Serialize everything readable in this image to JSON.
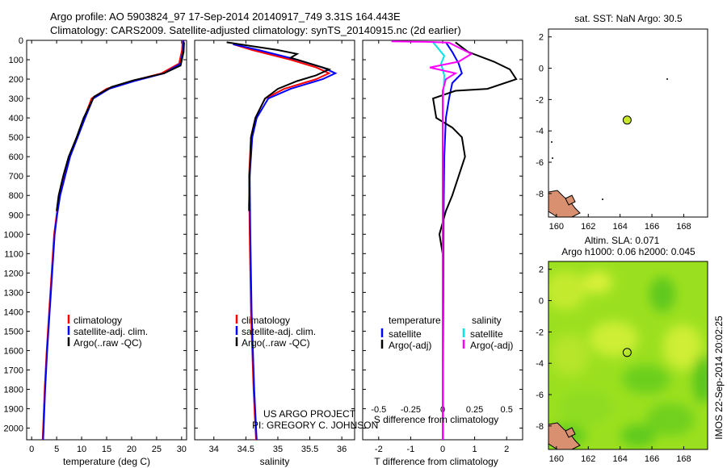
{
  "header": {
    "line1": "Argo profile: AO 5903824_97 17-Sep-2014 20140917_749 3.31S 164.443E",
    "line2": "Climatology: CARS2009. Satellite-adjusted climatology: synTS_20140915.nc (2d earlier)"
  },
  "credit": {
    "line1": "US ARGO PROJECT",
    "line2": "PI: GREGORY C. JOHNSON"
  },
  "timestamp": "IMOS 22-Sep-2014 20:02:25",
  "colors": {
    "climatology": "#ff0000",
    "satellite": "#0000ff",
    "argo": "#000000",
    "sal_satellite": "#00e5e5",
    "sal_argo": "#ff00ff",
    "sla_field": "#9be020",
    "land": "#d89070",
    "marker": "#c8e62a"
  },
  "chart_data": [
    {
      "id": "temperature",
      "type": "line",
      "xlabel": "temperature (deg C)",
      "ylabel": "",
      "xlim": [
        -1,
        31
      ],
      "ylim": [
        2060,
        0
      ],
      "xticks": [
        0,
        5,
        10,
        15,
        20,
        25,
        30
      ],
      "yticks": [
        0,
        100,
        200,
        300,
        400,
        500,
        600,
        700,
        800,
        900,
        1000,
        1100,
        1200,
        1300,
        1400,
        1500,
        1600,
        1700,
        1800,
        1900,
        2000
      ],
      "legend": [
        "climatology",
        "satellite-adj. clim.",
        "Argo(..raw -QC)"
      ],
      "legend_placement": "lower-center",
      "series": [
        {
          "name": "climatology",
          "color": "#ff0000",
          "points": [
            [
              30.2,
              0
            ],
            [
              30.1,
              50
            ],
            [
              29.5,
              120
            ],
            [
              26,
              170
            ],
            [
              20,
              210
            ],
            [
              15,
              250
            ],
            [
              12,
              300
            ],
            [
              10.5,
              400
            ],
            [
              9,
              500
            ],
            [
              7.5,
              600
            ],
            [
              6.5,
              700
            ],
            [
              5.5,
              800
            ],
            [
              5,
              900
            ],
            [
              4.5,
              1000
            ],
            [
              4,
              1200
            ],
            [
              3.5,
              1400
            ],
            [
              3,
              1600
            ],
            [
              2.6,
              1800
            ],
            [
              2.3,
              2000
            ],
            [
              2.2,
              2060
            ]
          ]
        },
        {
          "name": "satellite-adj. clim.",
          "color": "#0000ff",
          "points": [
            [
              30.4,
              0
            ],
            [
              30.3,
              50
            ],
            [
              29.8,
              120
            ],
            [
              26.5,
              170
            ],
            [
              20.5,
              210
            ],
            [
              15.5,
              250
            ],
            [
              12.3,
              300
            ],
            [
              10.7,
              400
            ],
            [
              9.2,
              500
            ],
            [
              7.7,
              600
            ],
            [
              6.7,
              700
            ],
            [
              5.7,
              800
            ],
            [
              5.1,
              900
            ],
            [
              4.6,
              1000
            ],
            [
              4.1,
              1200
            ],
            [
              3.6,
              1400
            ],
            [
              3.1,
              1600
            ],
            [
              2.7,
              1800
            ],
            [
              2.4,
              2000
            ],
            [
              2.3,
              2060
            ]
          ]
        },
        {
          "name": "Argo(..raw -QC)",
          "color": "#000000",
          "points": [
            [
              30.5,
              10
            ],
            [
              30.4,
              60
            ],
            [
              29.8,
              130
            ],
            [
              26.5,
              170
            ],
            [
              20.5,
              205
            ],
            [
              16,
              240
            ],
            [
              12.5,
              290
            ],
            [
              10.4,
              400
            ],
            [
              9,
              500
            ],
            [
              7.4,
              600
            ],
            [
              6.3,
              700
            ],
            [
              5.4,
              800
            ],
            [
              5,
              880
            ]
          ]
        }
      ]
    },
    {
      "id": "salinity",
      "type": "line",
      "xlabel": "salinity",
      "xlim": [
        33.7,
        36.2
      ],
      "ylim": [
        2060,
        0
      ],
      "xticks": [
        34,
        34.5,
        35,
        35.5,
        36
      ],
      "legend": [
        "climatology",
        "satellite-adj. clim.",
        "Argo(..raw -QC)"
      ],
      "legend_placement": "lower-center",
      "series": [
        {
          "name": "climatology",
          "color": "#ff0000",
          "points": [
            [
              34.3,
              20
            ],
            [
              34.6,
              50
            ],
            [
              35.2,
              100
            ],
            [
              35.6,
              140
            ],
            [
              35.8,
              170
            ],
            [
              35.6,
              200
            ],
            [
              35.1,
              250
            ],
            [
              34.8,
              300
            ],
            [
              34.65,
              400
            ],
            [
              34.58,
              500
            ],
            [
              34.55,
              700
            ],
            [
              34.56,
              1000
            ],
            [
              34.58,
              1400
            ],
            [
              34.62,
              1800
            ],
            [
              34.65,
              2000
            ],
            [
              34.66,
              2060
            ]
          ]
        },
        {
          "name": "satellite-adj. clim.",
          "color": "#0000ff",
          "points": [
            [
              34.3,
              20
            ],
            [
              34.7,
              50
            ],
            [
              35.3,
              100
            ],
            [
              35.7,
              140
            ],
            [
              35.9,
              170
            ],
            [
              35.7,
              200
            ],
            [
              35.2,
              250
            ],
            [
              34.85,
              300
            ],
            [
              34.67,
              400
            ],
            [
              34.6,
              500
            ],
            [
              34.56,
              700
            ],
            [
              34.57,
              1000
            ],
            [
              34.59,
              1400
            ],
            [
              34.63,
              1800
            ],
            [
              34.66,
              2000
            ],
            [
              34.67,
              2060
            ]
          ]
        },
        {
          "name": "Argo(..raw -QC)",
          "color": "#000000",
          "points": [
            [
              34.2,
              10
            ],
            [
              34.6,
              30
            ],
            [
              35.0,
              50
            ],
            [
              35.3,
              70
            ],
            [
              35.2,
              90
            ],
            [
              35.5,
              120
            ],
            [
              35.8,
              150
            ],
            [
              35.6,
              180
            ],
            [
              35.3,
              210
            ],
            [
              35.0,
              250
            ],
            [
              34.8,
              300
            ],
            [
              34.65,
              400
            ],
            [
              34.58,
              500
            ],
            [
              34.56,
              700
            ],
            [
              34.55,
              850
            ],
            [
              34.55,
              880
            ]
          ]
        }
      ]
    },
    {
      "id": "difference",
      "type": "line",
      "xlabel": "T difference from climatology",
      "x2label": "S difference from climatology",
      "xlim": [
        -2.5,
        2.5
      ],
      "ylim": [
        2060,
        0
      ],
      "xticks": [
        -2,
        -1,
        0,
        1,
        2
      ],
      "x2ticks": [
        -0.5,
        -0.25,
        0,
        0.25,
        0.5
      ],
      "legend_groups": [
        {
          "title": "temperature",
          "items": [
            "satellite",
            "Argo(-adj)"
          ]
        },
        {
          "title": "salinity",
          "items": [
            "satellite",
            "Argo(-adj)"
          ]
        }
      ],
      "series": [
        {
          "name": "temperature satellite",
          "color": "#0000ff",
          "points": [
            [
              0.1,
              10
            ],
            [
              0.3,
              60
            ],
            [
              0.5,
              120
            ],
            [
              0.6,
              170
            ],
            [
              0.3,
              220
            ],
            [
              0.2,
              300
            ],
            [
              0.1,
              400
            ],
            [
              0.05,
              600
            ],
            [
              0.03,
              900
            ],
            [
              0.02,
              1300
            ],
            [
              0.01,
              1700
            ],
            [
              0.01,
              2060
            ]
          ]
        },
        {
          "name": "temperature Argo(-adj)",
          "color": "#000000",
          "points": [
            [
              0.4,
              10
            ],
            [
              0.8,
              60
            ],
            [
              1.6,
              110
            ],
            [
              2.1,
              150
            ],
            [
              2.3,
              200
            ],
            [
              1.4,
              250
            ],
            [
              0.4,
              260
            ],
            [
              -0.3,
              300
            ],
            [
              -0.2,
              400
            ],
            [
              0.3,
              450
            ],
            [
              0.6,
              500
            ],
            [
              0.7,
              600
            ],
            [
              0.5,
              700
            ],
            [
              0.3,
              800
            ],
            [
              0.1,
              880
            ],
            [
              -0.1,
              1000
            ],
            [
              0,
              1100
            ],
            [
              0,
              1800
            ]
          ]
        },
        {
          "name": "salinity satellite",
          "color": "#00e5e5",
          "points": [
            [
              -0.3,
              10
            ],
            [
              -0.15,
              40
            ],
            [
              0.05,
              80
            ],
            [
              -0.05,
              120
            ],
            [
              0.05,
              180
            ],
            [
              0.02,
              300
            ],
            [
              0,
              500
            ],
            [
              0,
              2060
            ]
          ]
        },
        {
          "name": "salinity Argo(-adj)",
          "color": "#ff00ff",
          "points": [
            [
              -1.6,
              5
            ],
            [
              -0.5,
              8
            ],
            [
              0.2,
              12
            ],
            [
              0.9,
              70
            ],
            [
              0.5,
              110
            ],
            [
              -0.4,
              140
            ],
            [
              0.4,
              170
            ],
            [
              0.1,
              200
            ],
            [
              0,
              260
            ],
            [
              0,
              2060
            ]
          ]
        }
      ]
    },
    {
      "id": "sst_map",
      "type": "scatter",
      "title": "sat. SST: NaN Argo: 30.5",
      "xlim": [
        159.5,
        169.5
      ],
      "ylim": [
        -9.5,
        2.5
      ],
      "xticks": [
        160,
        162,
        164,
        166,
        168
      ],
      "yticks": [
        2,
        0,
        -2,
        -4,
        -6,
        -8
      ],
      "points": [
        {
          "x": 164.443,
          "y": -3.31
        }
      ]
    },
    {
      "id": "sla_map",
      "type": "heatmap",
      "title": "Altim. SLA: 0.071",
      "subtitle": "Argo h1000: 0.06 h2000: 0.045",
      "xlim": [
        159.5,
        169.5
      ],
      "ylim": [
        -9.5,
        2.5
      ],
      "xticks": [
        160,
        162,
        164,
        166,
        168
      ],
      "yticks": [
        2,
        0,
        -2,
        -4,
        -6,
        -8
      ],
      "points": [
        {
          "x": 164.443,
          "y": -3.31
        }
      ]
    }
  ]
}
